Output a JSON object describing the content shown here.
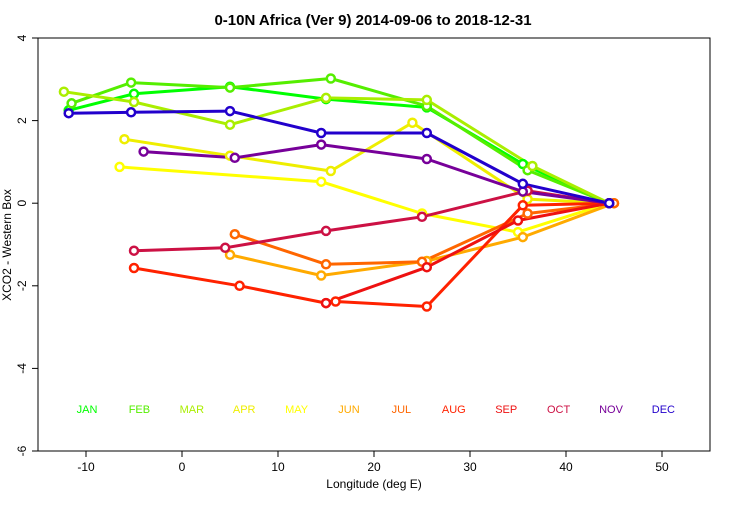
{
  "chart_data": {
    "type": "line",
    "title": "0-10N Africa (Ver 9)   2014-09-06 to 2018-12-31",
    "xlabel": "Longitude (deg E)",
    "ylabel": "XCO2 - Western Box",
    "xlim": [
      -15,
      55
    ],
    "ylim": [
      -6,
      4
    ],
    "xticks": [
      -10,
      0,
      10,
      20,
      30,
      40,
      50
    ],
    "yticks": [
      -6,
      -4,
      -2,
      0,
      2,
      4
    ],
    "xtick_labels": [
      "-10",
      "0",
      "10",
      "20",
      "30",
      "40",
      "50"
    ],
    "ytick_labels": [
      "-6",
      "-4",
      "-2",
      "0",
      "2",
      "4"
    ],
    "grid": false,
    "legend_placement": "bottom row inside plot",
    "series": [
      {
        "name": "JAN",
        "color": "#00ff00",
        "points": [
          [
            -11.8,
            2.25
          ],
          [
            -5,
            2.65
          ],
          [
            5,
            2.82
          ],
          [
            15,
            2.52
          ],
          [
            25.5,
            2.32
          ],
          [
            35.5,
            0.95
          ],
          [
            44.5,
            0
          ]
        ]
      },
      {
        "name": "FEB",
        "color": "#55ee00",
        "points": [
          [
            -11.5,
            2.42
          ],
          [
            -5.3,
            2.92
          ],
          [
            5,
            2.8
          ],
          [
            15.5,
            3.02
          ],
          [
            25.5,
            2.35
          ],
          [
            36,
            0.8
          ],
          [
            44.5,
            0
          ]
        ]
      },
      {
        "name": "MAR",
        "color": "#aaee00",
        "points": [
          [
            -12.3,
            2.7
          ],
          [
            -5,
            2.45
          ],
          [
            5,
            1.9
          ],
          [
            15,
            2.55
          ],
          [
            25.5,
            2.5
          ],
          [
            36.5,
            0.9
          ],
          [
            44.5,
            0
          ]
        ]
      },
      {
        "name": "APR",
        "color": "#eeee00",
        "points": [
          [
            -6,
            1.55
          ],
          [
            5,
            1.15
          ],
          [
            15.5,
            0.78
          ],
          [
            24,
            1.95
          ],
          [
            36,
            0.1
          ],
          [
            44.5,
            0
          ]
        ]
      },
      {
        "name": "MAY",
        "color": "#ffff00",
        "points": [
          [
            -6.5,
            0.88
          ],
          [
            14.5,
            0.52
          ],
          [
            25,
            -0.25
          ],
          [
            35,
            -0.7
          ],
          [
            44.5,
            0
          ]
        ]
      },
      {
        "name": "JUN",
        "color": "#ffaa00",
        "points": [
          [
            5,
            -1.25
          ],
          [
            14.5,
            -1.75
          ],
          [
            25.5,
            -1.4
          ],
          [
            35.5,
            -0.82
          ],
          [
            45,
            0
          ]
        ]
      },
      {
        "name": "JUL",
        "color": "#ff6600",
        "points": [
          [
            5.5,
            -0.75
          ],
          [
            15,
            -1.48
          ],
          [
            25,
            -1.42
          ],
          [
            36,
            -0.25
          ],
          [
            45,
            0
          ]
        ]
      },
      {
        "name": "AUG",
        "color": "#ff2200",
        "points": [
          [
            -5,
            -1.57
          ],
          [
            6,
            -2
          ],
          [
            15,
            -2.42
          ],
          [
            16,
            -2.38
          ],
          [
            25.5,
            -2.5
          ],
          [
            35.5,
            -0.05
          ],
          [
            44.5,
            0
          ]
        ]
      },
      {
        "name": "SEP",
        "color": "#ee1111",
        "points": [
          [
            15,
            -2.42
          ],
          [
            25.5,
            -1.55
          ],
          [
            35,
            -0.42
          ],
          [
            44.5,
            0
          ]
        ]
      },
      {
        "name": "OCT",
        "color": "#cc1144",
        "points": [
          [
            -5,
            -1.15
          ],
          [
            4.5,
            -1.08
          ],
          [
            15,
            -0.67
          ],
          [
            25,
            -0.33
          ],
          [
            36,
            0.3
          ],
          [
            44.5,
            0
          ]
        ]
      },
      {
        "name": "NOV",
        "color": "#770099",
        "points": [
          [
            -4,
            1.25
          ],
          [
            5.5,
            1.1
          ],
          [
            14.5,
            1.42
          ],
          [
            25.5,
            1.07
          ],
          [
            35.5,
            0.28
          ],
          [
            44.5,
            0
          ]
        ]
      },
      {
        "name": "DEC",
        "color": "#2200cc",
        "points": [
          [
            -11.8,
            2.18
          ],
          [
            -5.3,
            2.2
          ],
          [
            5,
            2.23
          ],
          [
            14.5,
            1.7
          ],
          [
            25.5,
            1.7
          ],
          [
            35.5,
            0.47
          ],
          [
            44.5,
            0
          ]
        ]
      }
    ]
  }
}
